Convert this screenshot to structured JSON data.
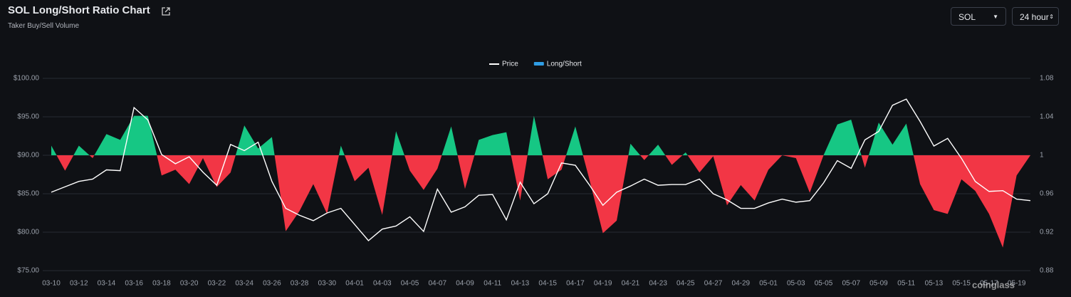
{
  "chart_data": {
    "type": "line-area",
    "title": "SOL Long/Short Ratio Chart",
    "subtitle": "Taker Buy/Sell Volume",
    "controls": {
      "coin": "SOL",
      "interval": "24 hour"
    },
    "watermark": "coinglass",
    "categories": [
      "03-10",
      null,
      "03-12",
      null,
      "03-14",
      null,
      "03-16",
      null,
      "03-18",
      null,
      "03-20",
      null,
      "03-22",
      null,
      "03-24",
      null,
      "03-26",
      null,
      "03-28",
      null,
      "03-30",
      null,
      "04-01",
      null,
      "04-03",
      null,
      "04-05",
      null,
      "04-07",
      null,
      "04-09",
      null,
      "04-11",
      null,
      "04-13",
      null,
      "04-15",
      null,
      "04-17",
      null,
      "04-19",
      null,
      "04-21",
      null,
      "04-23",
      null,
      "04-25",
      null,
      "04-27",
      null,
      "04-29",
      null,
      "05-01",
      null,
      "05-03",
      null,
      "05-05",
      null,
      "05-07",
      null,
      "05-09",
      null,
      "05-11",
      null,
      "05-13",
      null,
      "05-15",
      null,
      "05-17",
      null,
      "05-19",
      null
    ],
    "series": [
      {
        "name": "Price",
        "color": "#ffffff",
        "values": [
          85.2,
          85.9,
          86.6,
          86.9,
          88.1,
          88.0,
          96.2,
          94.6,
          90.1,
          88.9,
          89.8,
          87.8,
          86.1,
          91.4,
          90.6,
          91.7,
          86.6,
          83.1,
          82.2,
          81.5,
          82.5,
          83.1,
          81.0,
          78.9,
          80.4,
          80.8,
          82.0,
          80.1,
          85.6,
          82.6,
          83.3,
          84.8,
          84.9,
          81.6,
          86.5,
          83.7,
          85.0,
          89.0,
          88.7,
          86.2,
          83.5,
          85.2,
          86.0,
          86.9,
          86.1,
          86.2,
          86.2,
          86.9,
          85.0,
          84.2,
          83.1,
          83.1,
          83.8,
          84.3,
          83.9,
          84.1,
          86.4,
          89.3,
          88.3,
          92.0,
          93.1,
          96.5,
          97.3,
          94.4,
          91.2,
          92.2,
          89.6,
          86.6,
          85.3,
          85.4,
          84.3,
          84.1
        ]
      },
      {
        "name": "Long/Short",
        "color": "#2f9de4",
        "axis": "y2",
        "baseline": 1,
        "up_color": "#16c784",
        "down_color": "#f23645",
        "values": [
          1.01,
          0.984,
          1.01,
          0.997,
          1.022,
          1.016,
          1.041,
          1.041,
          0.979,
          0.985,
          0.97,
          0.997,
          0.967,
          0.982,
          1.031,
          1.007,
          1.019,
          0.921,
          0.942,
          0.97,
          0.939,
          1.01,
          0.973,
          0.987,
          0.938,
          1.025,
          0.984,
          0.964,
          0.986,
          1.03,
          0.965,
          1.016,
          1.021,
          1.024,
          0.953,
          1.041,
          0.975,
          0.985,
          1.03,
          0.976,
          0.919,
          0.932,
          1.012,
          0.995,
          1.011,
          0.99,
          1.003,
          0.982,
          0.999,
          0.948,
          0.969,
          0.953,
          0.985,
          1.0,
          0.997,
          0.961,
          1.0,
          1.032,
          1.037,
          0.987,
          1.034,
          1.011,
          1.033,
          0.97,
          0.943,
          0.939,
          0.975,
          0.963,
          0.939,
          0.904,
          0.979,
          1.0
        ]
      }
    ],
    "ylim": [
      75,
      100
    ],
    "yticks": [
      {
        "value": 75,
        "label": "$75.00"
      },
      {
        "value": 80,
        "label": "$80.00"
      },
      {
        "value": 85,
        "label": "$85.00"
      },
      {
        "value": 90,
        "label": "$90.00"
      },
      {
        "value": 95,
        "label": "$95.00"
      },
      {
        "value": 100,
        "label": "$100.00"
      }
    ],
    "y2lim": [
      0.88,
      1.08
    ],
    "y2ticks": [
      0.88,
      0.92,
      0.96,
      1,
      1.04,
      1.08
    ],
    "grid": true,
    "legend": "top"
  }
}
